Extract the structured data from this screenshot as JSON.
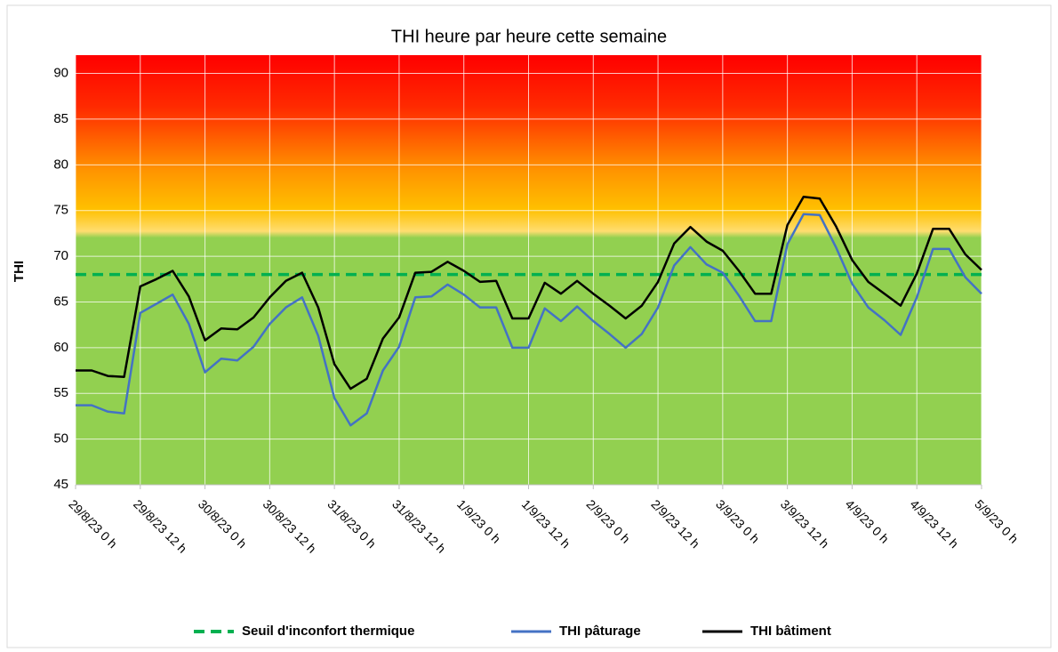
{
  "chart_data": {
    "type": "line",
    "title": "THI heure par heure cette semaine",
    "y_label": "THI",
    "xlim": [
      0,
      168
    ],
    "xticks": [
      {
        "value": 0,
        "label": "29/8/23 0 h"
      },
      {
        "value": 12,
        "label": "29/8/23 12 h"
      },
      {
        "value": 24,
        "label": "30/8/23 0 h"
      },
      {
        "value": 36,
        "label": "30/8/23 12 h"
      },
      {
        "value": 48,
        "label": "31/8/23 0 h"
      },
      {
        "value": 60,
        "label": "31/8/23 12 h"
      },
      {
        "value": 72,
        "label": "1/9/23 0 h"
      },
      {
        "value": 84,
        "label": "1/9/23 12 h"
      },
      {
        "value": 96,
        "label": "2/9/23 0 h"
      },
      {
        "value": 108,
        "label": "2/9/23 12 h"
      },
      {
        "value": 120,
        "label": "3/9/23 0 h"
      },
      {
        "value": 132,
        "label": "3/9/23 12 h"
      },
      {
        "value": 144,
        "label": "4/9/23 0 h"
      },
      {
        "value": 156,
        "label": "4/9/23 12 h"
      },
      {
        "value": 168,
        "label": "5/9/23 0 h"
      }
    ],
    "ylim": [
      45,
      92
    ],
    "yticks": [
      45,
      50,
      55,
      60,
      65,
      70,
      75,
      80,
      85,
      90
    ],
    "grid": true,
    "legend": "bottom",
    "threshold": {
      "name": "Seuil d'inconfort thermique",
      "color": "#00b050",
      "value": 68,
      "dashed": true
    },
    "x": [
      0,
      3,
      6,
      9,
      12,
      15,
      18,
      21,
      24,
      27,
      30,
      33,
      36,
      39,
      42,
      45,
      48,
      51,
      54,
      57,
      60,
      63,
      66,
      69,
      72,
      75,
      78,
      81,
      84,
      87,
      90,
      93,
      96,
      99,
      102,
      105,
      108,
      111,
      114,
      117,
      120,
      123,
      126,
      129,
      132,
      135,
      138,
      141,
      144,
      147,
      150,
      153,
      156,
      159,
      162,
      165,
      168
    ],
    "series": [
      {
        "name": "THI pâturage",
        "color": "#4472c4",
        "values": [
          53.7,
          53.7,
          53.0,
          52.8,
          63.8,
          64.8,
          65.8,
          62.6,
          57.3,
          58.8,
          58.6,
          60.1,
          62.6,
          64.4,
          65.5,
          61.3,
          54.5,
          51.5,
          52.8,
          57.5,
          60.1,
          65.5,
          65.6,
          66.9,
          65.8,
          64.4,
          64.4,
          60.0,
          60.0,
          64.3,
          62.9,
          64.5,
          62.9,
          61.5,
          60.0,
          61.5,
          64.4,
          69.0,
          71.0,
          69.1,
          68.2,
          65.7,
          62.9,
          62.9,
          71.3,
          74.6,
          74.5,
          71.0,
          67.0,
          64.4,
          63.0,
          61.4,
          65.5,
          70.8,
          70.8,
          67.7,
          65.9
        ]
      },
      {
        "name": "THI bâtiment",
        "color": "#000000",
        "values": [
          57.5,
          57.5,
          56.9,
          56.8,
          66.7,
          67.5,
          68.4,
          65.6,
          60.8,
          62.1,
          62.0,
          63.3,
          65.5,
          67.3,
          68.2,
          64.4,
          58.2,
          55.5,
          56.6,
          61.0,
          63.3,
          68.2,
          68.3,
          69.4,
          68.4,
          67.2,
          67.3,
          63.2,
          63.2,
          67.1,
          65.9,
          67.3,
          65.9,
          64.6,
          63.2,
          64.6,
          67.2,
          71.4,
          73.2,
          71.6,
          70.6,
          68.4,
          65.9,
          65.9,
          73.4,
          76.5,
          76.3,
          73.3,
          69.6,
          67.2,
          65.9,
          64.6,
          68.1,
          73.0,
          73.0,
          70.2,
          68.5
        ]
      }
    ]
  }
}
